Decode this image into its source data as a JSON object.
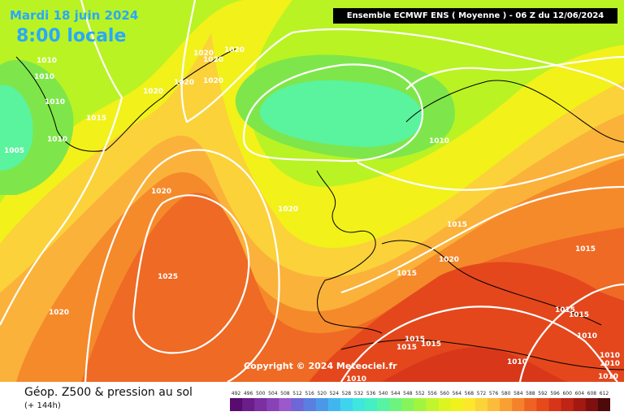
{
  "header": {
    "date": "Mardi 18 juin 2024",
    "time": "8:00 locale",
    "model_label": "Ensemble ECMWF ENS  ( Moyenne )  -  06 Z du 12/06/2024"
  },
  "copyright": "Copyright © 2024 Meteociel.fr",
  "footer": {
    "title": "Géop. Z500 & pression au sol",
    "subtitle": "(+ 144h)"
  },
  "scale_values": [
    "492",
    "496",
    "500",
    "504",
    "508",
    "512",
    "516",
    "520",
    "524",
    "528",
    "532",
    "536",
    "540",
    "544",
    "548",
    "552",
    "556",
    "560",
    "564",
    "568",
    "572",
    "576",
    "580",
    "584",
    "588",
    "592",
    "596",
    "600",
    "604",
    "608",
    "612"
  ],
  "scale_colors": [
    "#5a0b6f",
    "#6b1d8a",
    "#7c2fa0",
    "#8842b8",
    "#9b59cc",
    "#6f66d8",
    "#5b7fe0",
    "#4b98e8",
    "#41b6ee",
    "#3ed4ef",
    "#3fe6de",
    "#45efc4",
    "#58f2a3",
    "#6df47f",
    "#86f55b",
    "#a2f53e",
    "#c1f52e",
    "#dcf521",
    "#f1f21b",
    "#fde72a",
    "#fbd438",
    "#fbbc3b",
    "#f8a032",
    "#f5822a",
    "#ef6322",
    "#e64a1b",
    "#d83518",
    "#c02414",
    "#a31912",
    "#7f0f0f",
    "#4e0a0a"
  ],
  "isobar_labels": [
    {
      "text": "1010"
    },
    {
      "text": "1010"
    },
    {
      "text": "1010"
    },
    {
      "text": "1010"
    },
    {
      "text": "1005"
    },
    {
      "text": "1015"
    },
    {
      "text": "1020"
    },
    {
      "text": "1020"
    },
    {
      "text": "1020"
    },
    {
      "text": "1020"
    },
    {
      "text": "1020"
    },
    {
      "text": "1020"
    },
    {
      "text": "1020"
    },
    {
      "text": "1010"
    },
    {
      "text": "1020"
    },
    {
      "text": "1025"
    },
    {
      "text": "1020"
    },
    {
      "text": "1015"
    },
    {
      "text": "1015"
    },
    {
      "text": "1020"
    },
    {
      "text": "1015"
    },
    {
      "text": "1015"
    },
    {
      "text": "1015"
    },
    {
      "text": "1010"
    },
    {
      "text": "1015"
    },
    {
      "text": "1015"
    },
    {
      "text": "1015"
    },
    {
      "text": "1010"
    },
    {
      "text": "1010"
    },
    {
      "text": "1010"
    },
    {
      "text": "1010"
    },
    {
      "text": "1010"
    }
  ]
}
